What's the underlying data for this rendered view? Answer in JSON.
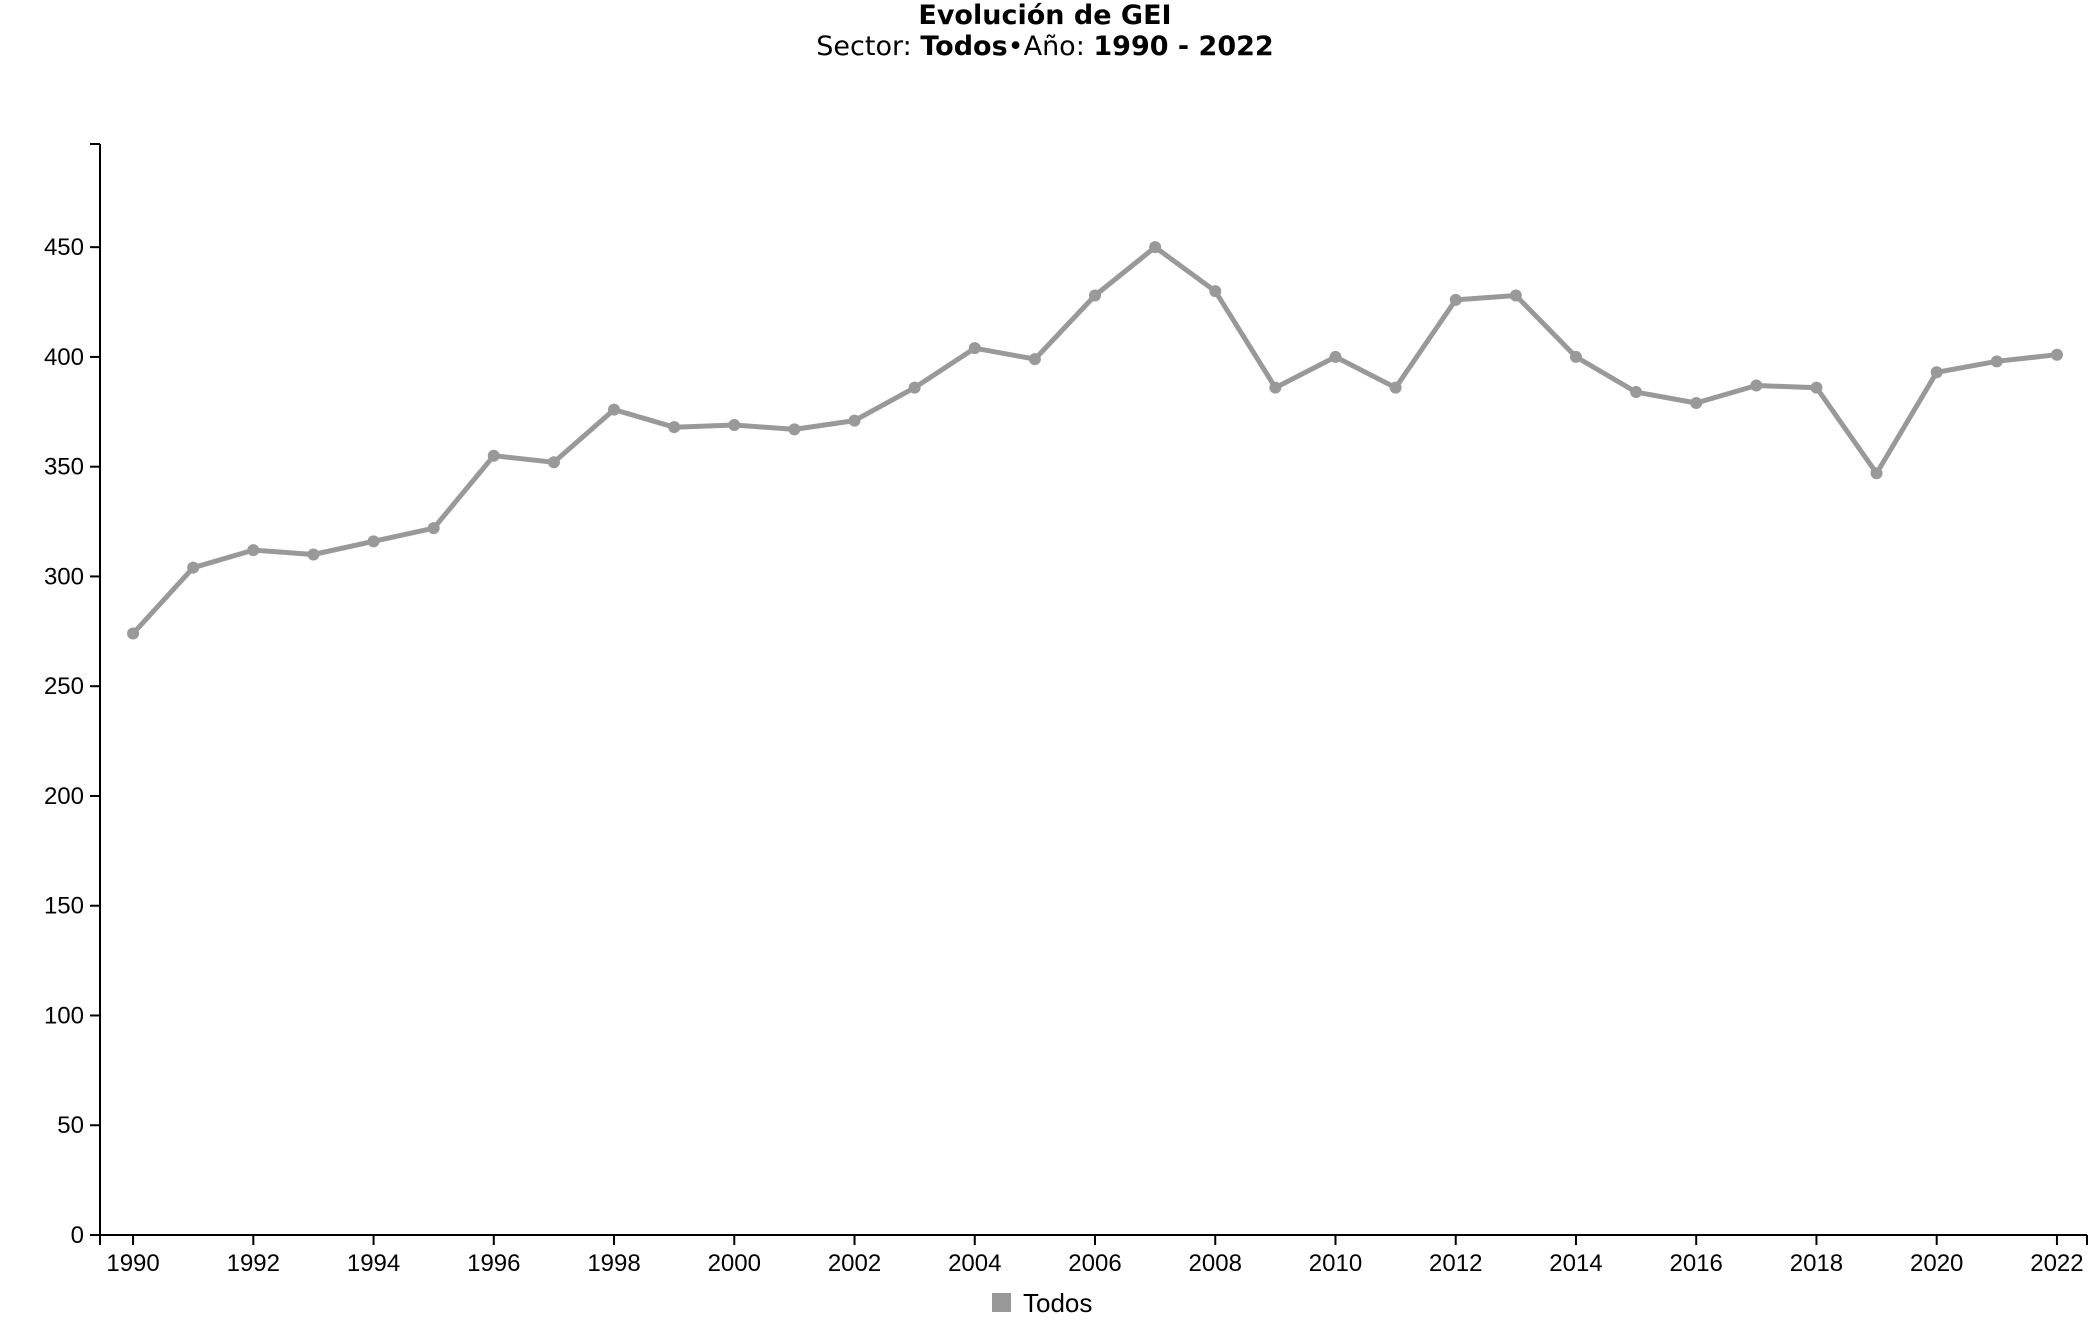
{
  "chart_data": {
    "type": "line",
    "title": "Evolución de GEI",
    "subtitle": {
      "sector_label": "Sector:",
      "sector_value": "Todos",
      "separator": "•",
      "year_label": "Año:",
      "year_value": "1990 - 2022"
    },
    "xlabel": "",
    "ylabel": "",
    "x": [
      1990,
      1991,
      1992,
      1993,
      1994,
      1995,
      1996,
      1997,
      1998,
      1999,
      2000,
      2001,
      2002,
      2003,
      2004,
      2005,
      2006,
      2007,
      2008,
      2009,
      2010,
      2011,
      2012,
      2013,
      2014,
      2015,
      2016,
      2017,
      2018,
      2019,
      2020,
      2021,
      2022
    ],
    "x_ticks": [
      1990,
      1992,
      1994,
      1996,
      1998,
      2000,
      2002,
      2004,
      2006,
      2008,
      2010,
      2012,
      2014,
      2016,
      2018,
      2020,
      2022
    ],
    "xlim": [
      1989.45,
      2022.5
    ],
    "y_ticks": [
      0,
      50,
      100,
      150,
      200,
      250,
      300,
      350,
      400,
      450
    ],
    "ylim": [
      0,
      497
    ],
    "grid": false,
    "legend_position": "bottom-center",
    "series": [
      {
        "name": "Todos",
        "color": "#999999",
        "values": [
          274,
          304,
          312,
          310,
          316,
          322,
          355,
          352,
          376,
          368,
          369,
          367,
          371,
          386,
          404,
          399,
          428,
          450,
          430,
          386,
          400,
          386,
          426,
          428,
          400,
          384,
          379,
          387,
          386,
          347,
          393,
          398,
          401
        ]
      }
    ]
  }
}
